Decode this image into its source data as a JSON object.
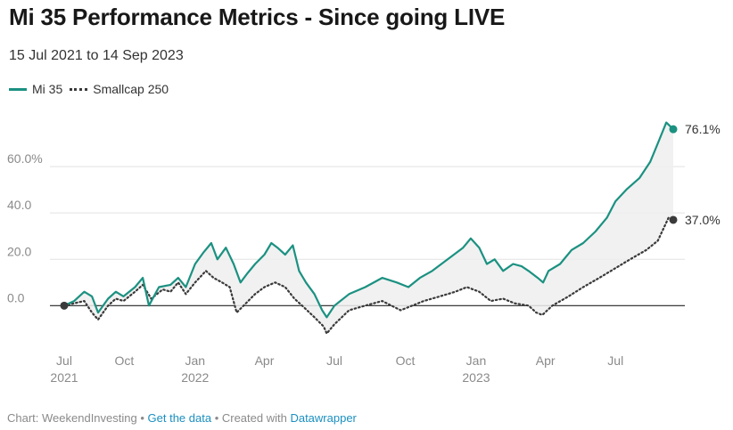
{
  "title": "Mi 35 Performance Metrics - Since going LIVE",
  "subtitle": "15 Jul 2021 to 14 Sep 2023",
  "footer": {
    "prefix": "Chart: WeekendInvesting • ",
    "get_data": "Get the data",
    "middle": " • Created with ",
    "datawrapper": "Datawrapper"
  },
  "colors": {
    "mi35": "#1b9181",
    "smallcap": "#3a3a3a",
    "fill": "#efefef"
  },
  "chart_data": {
    "type": "line",
    "ylim": [
      -16,
      80
    ],
    "grid": true,
    "legend_position": "top-left",
    "y_ticks": [
      {
        "value": 0,
        "label": "0.0"
      },
      {
        "value": 20,
        "label": "20.0"
      },
      {
        "value": 40,
        "label": "40.0"
      },
      {
        "value": 60,
        "label": "60.0%"
      }
    ],
    "x_ticks": [
      {
        "date": "2021-07-15",
        "label": "Jul",
        "sub": "2021"
      },
      {
        "date": "2021-10-01",
        "label": "Oct",
        "sub": ""
      },
      {
        "date": "2022-01-01",
        "label": "Jan",
        "sub": "2022"
      },
      {
        "date": "2022-04-01",
        "label": "Apr",
        "sub": ""
      },
      {
        "date": "2022-07-01",
        "label": "Jul",
        "sub": ""
      },
      {
        "date": "2022-10-01",
        "label": "Oct",
        "sub": ""
      },
      {
        "date": "2023-01-01",
        "label": "Jan",
        "sub": "2023"
      },
      {
        "date": "2023-04-01",
        "label": "Apr",
        "sub": ""
      },
      {
        "date": "2023-07-01",
        "label": "Jul",
        "sub": ""
      }
    ],
    "series": [
      {
        "name": "Mi 35",
        "style": "solid",
        "end_label": "76.1%",
        "points": [
          [
            "2021-07-15",
            0
          ],
          [
            "2021-07-28",
            2
          ],
          [
            "2021-08-10",
            6
          ],
          [
            "2021-08-20",
            4
          ],
          [
            "2021-08-28",
            -3
          ],
          [
            "2021-09-10",
            3
          ],
          [
            "2021-09-20",
            6
          ],
          [
            "2021-09-30",
            4
          ],
          [
            "2021-10-15",
            8
          ],
          [
            "2021-10-25",
            12
          ],
          [
            "2021-11-02",
            0
          ],
          [
            "2021-11-15",
            8
          ],
          [
            "2021-11-30",
            9
          ],
          [
            "2021-12-10",
            12
          ],
          [
            "2021-12-20",
            8
          ],
          [
            "2022-01-01",
            18
          ],
          [
            "2022-01-12",
            23
          ],
          [
            "2022-01-22",
            27
          ],
          [
            "2022-01-30",
            20
          ],
          [
            "2022-02-10",
            25
          ],
          [
            "2022-02-20",
            18
          ],
          [
            "2022-03-01",
            10
          ],
          [
            "2022-03-10",
            14
          ],
          [
            "2022-03-20",
            18
          ],
          [
            "2022-04-01",
            22
          ],
          [
            "2022-04-10",
            27
          ],
          [
            "2022-04-18",
            25
          ],
          [
            "2022-04-28",
            22
          ],
          [
            "2022-05-08",
            26
          ],
          [
            "2022-05-16",
            15
          ],
          [
            "2022-05-25",
            10
          ],
          [
            "2022-06-05",
            5
          ],
          [
            "2022-06-15",
            -2
          ],
          [
            "2022-06-21",
            -5
          ],
          [
            "2022-07-01",
            0
          ],
          [
            "2022-07-20",
            5
          ],
          [
            "2022-08-10",
            8
          ],
          [
            "2022-09-01",
            12
          ],
          [
            "2022-09-20",
            10
          ],
          [
            "2022-10-05",
            8
          ],
          [
            "2022-10-20",
            12
          ],
          [
            "2022-11-05",
            15
          ],
          [
            "2022-11-25",
            20
          ],
          [
            "2022-12-15",
            25
          ],
          [
            "2022-12-25",
            29
          ],
          [
            "2023-01-05",
            25
          ],
          [
            "2023-01-15",
            18
          ],
          [
            "2023-01-25",
            20
          ],
          [
            "2023-02-05",
            15
          ],
          [
            "2023-02-18",
            18
          ],
          [
            "2023-03-01",
            17
          ],
          [
            "2023-03-10",
            15
          ],
          [
            "2023-03-22",
            12
          ],
          [
            "2023-03-29",
            10
          ],
          [
            "2023-04-05",
            15
          ],
          [
            "2023-04-20",
            18
          ],
          [
            "2023-05-05",
            24
          ],
          [
            "2023-05-20",
            27
          ],
          [
            "2023-06-05",
            32
          ],
          [
            "2023-06-20",
            38
          ],
          [
            "2023-07-01",
            45
          ],
          [
            "2023-07-15",
            50
          ],
          [
            "2023-08-01",
            55
          ],
          [
            "2023-08-15",
            62
          ],
          [
            "2023-08-25",
            70
          ],
          [
            "2023-09-05",
            79
          ],
          [
            "2023-09-14",
            76.1
          ]
        ]
      },
      {
        "name": "Smallcap 250",
        "style": "dotted",
        "end_label": "37.0%",
        "points": [
          [
            "2021-07-15",
            0
          ],
          [
            "2021-07-28",
            1
          ],
          [
            "2021-08-10",
            2
          ],
          [
            "2021-08-20",
            -3
          ],
          [
            "2021-08-28",
            -6
          ],
          [
            "2021-09-10",
            0
          ],
          [
            "2021-09-20",
            3
          ],
          [
            "2021-09-30",
            2
          ],
          [
            "2021-10-15",
            6
          ],
          [
            "2021-10-25",
            9
          ],
          [
            "2021-11-05",
            3
          ],
          [
            "2021-11-20",
            7
          ],
          [
            "2021-11-30",
            6
          ],
          [
            "2021-12-10",
            10
          ],
          [
            "2021-12-20",
            5
          ],
          [
            "2022-01-01",
            10
          ],
          [
            "2022-01-15",
            15
          ],
          [
            "2022-01-25",
            12
          ],
          [
            "2022-02-05",
            10
          ],
          [
            "2022-02-15",
            8
          ],
          [
            "2022-02-24",
            -3
          ],
          [
            "2022-03-05",
            0
          ],
          [
            "2022-03-20",
            5
          ],
          [
            "2022-04-01",
            8
          ],
          [
            "2022-04-15",
            10
          ],
          [
            "2022-04-28",
            8
          ],
          [
            "2022-05-10",
            3
          ],
          [
            "2022-05-20",
            0
          ],
          [
            "2022-06-05",
            -5
          ],
          [
            "2022-06-17",
            -9
          ],
          [
            "2022-06-21",
            -12
          ],
          [
            "2022-07-01",
            -8
          ],
          [
            "2022-07-20",
            -2
          ],
          [
            "2022-08-10",
            0
          ],
          [
            "2022-09-01",
            2
          ],
          [
            "2022-09-25",
            -2
          ],
          [
            "2022-10-10",
            0
          ],
          [
            "2022-10-25",
            2
          ],
          [
            "2022-11-15",
            4
          ],
          [
            "2022-12-05",
            6
          ],
          [
            "2022-12-20",
            8
          ],
          [
            "2023-01-05",
            6
          ],
          [
            "2023-01-20",
            2
          ],
          [
            "2023-02-05",
            3
          ],
          [
            "2023-02-20",
            1
          ],
          [
            "2023-03-10",
            0
          ],
          [
            "2023-03-20",
            -3
          ],
          [
            "2023-03-28",
            -4
          ],
          [
            "2023-04-10",
            0
          ],
          [
            "2023-05-01",
            4
          ],
          [
            "2023-05-20",
            8
          ],
          [
            "2023-06-10",
            12
          ],
          [
            "2023-06-30",
            16
          ],
          [
            "2023-07-20",
            20
          ],
          [
            "2023-08-10",
            24
          ],
          [
            "2023-08-25",
            28
          ],
          [
            "2023-09-08",
            38
          ],
          [
            "2023-09-14",
            37
          ]
        ]
      }
    ]
  }
}
